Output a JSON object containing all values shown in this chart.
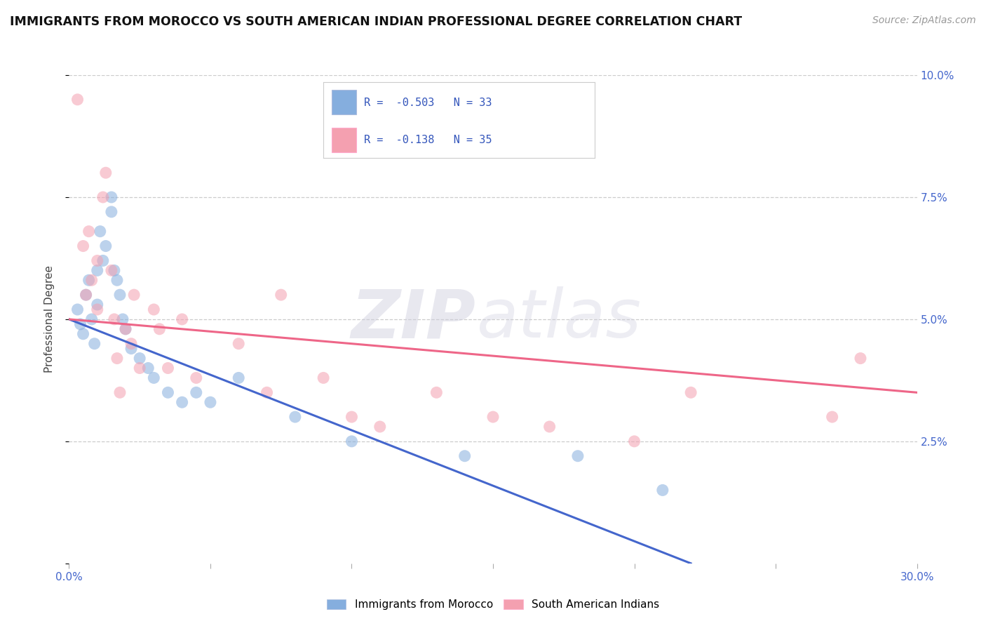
{
  "title": "IMMIGRANTS FROM MOROCCO VS SOUTH AMERICAN INDIAN PROFESSIONAL DEGREE CORRELATION CHART",
  "source": "Source: ZipAtlas.com",
  "ylabel": "Professional Degree",
  "xlim": [
    0.0,
    0.3
  ],
  "ylim": [
    0.0,
    0.1
  ],
  "legend_r1": "-0.503",
  "legend_n1": "33",
  "legend_r2": "-0.138",
  "legend_n2": "35",
  "blue_color": "#85AEDE",
  "pink_color": "#F4A0B0",
  "line_blue": "#4466CC",
  "line_pink": "#EE6688",
  "legend_label1": "Immigrants from Morocco",
  "legend_label2": "South American Indians",
  "blue_x": [
    0.003,
    0.004,
    0.005,
    0.006,
    0.007,
    0.008,
    0.009,
    0.01,
    0.01,
    0.011,
    0.012,
    0.013,
    0.015,
    0.015,
    0.016,
    0.017,
    0.018,
    0.019,
    0.02,
    0.022,
    0.025,
    0.028,
    0.03,
    0.035,
    0.04,
    0.045,
    0.05,
    0.06,
    0.08,
    0.1,
    0.14,
    0.18,
    0.21
  ],
  "blue_y": [
    0.052,
    0.049,
    0.047,
    0.055,
    0.058,
    0.05,
    0.045,
    0.053,
    0.06,
    0.068,
    0.062,
    0.065,
    0.072,
    0.075,
    0.06,
    0.058,
    0.055,
    0.05,
    0.048,
    0.044,
    0.042,
    0.04,
    0.038,
    0.035,
    0.033,
    0.035,
    0.033,
    0.038,
    0.03,
    0.025,
    0.022,
    0.022,
    0.015
  ],
  "pink_x": [
    0.003,
    0.005,
    0.006,
    0.007,
    0.008,
    0.01,
    0.01,
    0.012,
    0.013,
    0.015,
    0.016,
    0.017,
    0.018,
    0.02,
    0.022,
    0.023,
    0.025,
    0.03,
    0.032,
    0.035,
    0.04,
    0.045,
    0.06,
    0.07,
    0.075,
    0.09,
    0.1,
    0.11,
    0.13,
    0.15,
    0.17,
    0.2,
    0.22,
    0.27,
    0.28
  ],
  "pink_y": [
    0.095,
    0.065,
    0.055,
    0.068,
    0.058,
    0.062,
    0.052,
    0.075,
    0.08,
    0.06,
    0.05,
    0.042,
    0.035,
    0.048,
    0.045,
    0.055,
    0.04,
    0.052,
    0.048,
    0.04,
    0.05,
    0.038,
    0.045,
    0.035,
    0.055,
    0.038,
    0.03,
    0.028,
    0.035,
    0.03,
    0.028,
    0.025,
    0.035,
    0.03,
    0.042
  ],
  "blue_line_x0": 0.0,
  "blue_line_y0": 0.05,
  "blue_line_x1": 0.22,
  "blue_line_y1": 0.0,
  "pink_line_x0": 0.0,
  "pink_line_y0": 0.05,
  "pink_line_x1": 0.3,
  "pink_line_y1": 0.035
}
